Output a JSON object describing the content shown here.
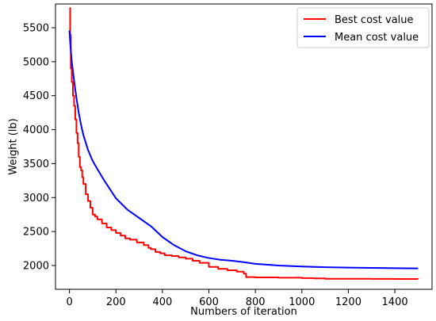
{
  "chart_data": {
    "type": "line",
    "xlabel": "Numbers of iteration",
    "ylabel": "Weight (lb)",
    "xlim": [
      -60,
      1560
    ],
    "ylim": [
      1650,
      5850
    ],
    "xticks": [
      0,
      200,
      400,
      600,
      800,
      1000,
      1200,
      1400
    ],
    "yticks": [
      2000,
      2500,
      3000,
      3500,
      4000,
      4500,
      5000,
      5500
    ],
    "legend_position": "top-right",
    "grid": false,
    "series": [
      {
        "name": "Best cost value",
        "color": "#ff0000",
        "step": true,
        "x": [
          0,
          3,
          6,
          10,
          15,
          20,
          25,
          30,
          35,
          40,
          45,
          50,
          55,
          60,
          70,
          80,
          90,
          100,
          110,
          120,
          140,
          160,
          180,
          200,
          220,
          240,
          260,
          290,
          320,
          340,
          350,
          370,
          390,
          410,
          440,
          470,
          500,
          530,
          560,
          600,
          640,
          680,
          720,
          750,
          760,
          800,
          900,
          1000,
          1050,
          1100,
          1200,
          1300,
          1400,
          1500
        ],
        "y": [
          5790,
          5400,
          4900,
          4700,
          4500,
          4350,
          4150,
          3950,
          3800,
          3600,
          3450,
          3400,
          3300,
          3200,
          3050,
          2950,
          2850,
          2750,
          2720,
          2680,
          2620,
          2560,
          2520,
          2480,
          2440,
          2400,
          2380,
          2340,
          2300,
          2260,
          2240,
          2200,
          2180,
          2150,
          2140,
          2120,
          2100,
          2070,
          2040,
          1980,
          1950,
          1930,
          1910,
          1880,
          1830,
          1825,
          1820,
          1815,
          1810,
          1805,
          1805,
          1803,
          1801,
          1800
        ]
      },
      {
        "name": "Mean cost value",
        "color": "#0000ff",
        "step": false,
        "x": [
          0,
          5,
          10,
          20,
          30,
          40,
          50,
          60,
          80,
          100,
          120,
          150,
          200,
          250,
          300,
          350,
          400,
          450,
          500,
          550,
          600,
          650,
          700,
          750,
          800,
          900,
          1000,
          1100,
          1200,
          1300,
          1400,
          1500
        ],
        "y": [
          5460,
          5200,
          5000,
          4720,
          4470,
          4250,
          4070,
          3920,
          3700,
          3540,
          3420,
          3250,
          2990,
          2820,
          2700,
          2580,
          2420,
          2300,
          2210,
          2150,
          2110,
          2085,
          2070,
          2050,
          2025,
          2000,
          1985,
          1975,
          1970,
          1965,
          1960,
          1958
        ]
      }
    ]
  }
}
